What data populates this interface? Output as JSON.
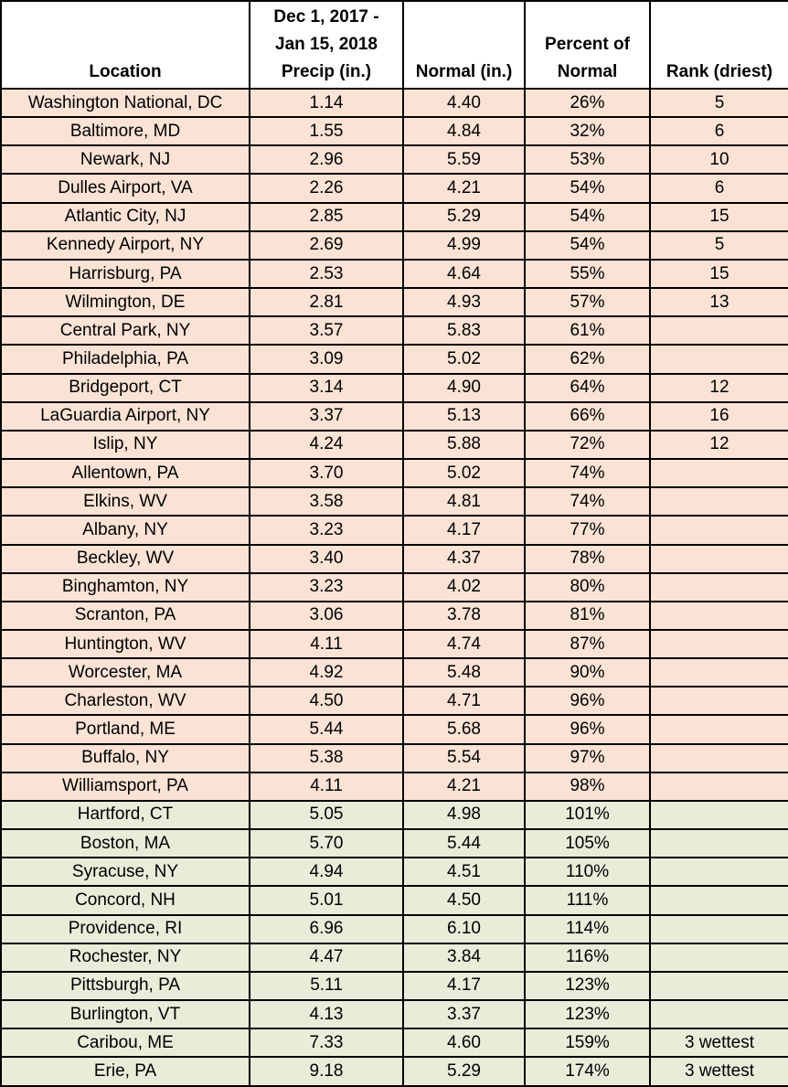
{
  "colors": {
    "below_normal_row_bg": "#fae3d4",
    "above_normal_row_bg": "#e8edda",
    "border": "#000000",
    "text": "#000000",
    "header_bg": "#ffffff"
  },
  "table": {
    "columns": [
      {
        "key": "location",
        "label_lines": [
          "Location"
        ]
      },
      {
        "key": "precip",
        "label_lines": [
          "Dec 1, 2017 -",
          "Jan 15, 2018",
          "Precip (in.)"
        ]
      },
      {
        "key": "normal",
        "label_lines": [
          "Normal (in.)"
        ]
      },
      {
        "key": "percent",
        "label_lines": [
          "Percent of",
          "Normal"
        ]
      },
      {
        "key": "rank",
        "label_lines": [
          "Rank (driest)"
        ]
      }
    ],
    "rows": [
      {
        "location": "Washington National, DC",
        "precip": "1.14",
        "normal": "4.40",
        "percent": "26%",
        "rank": "5",
        "status": "below"
      },
      {
        "location": "Baltimore, MD",
        "precip": "1.55",
        "normal": "4.84",
        "percent": "32%",
        "rank": "6",
        "status": "below"
      },
      {
        "location": "Newark, NJ",
        "precip": "2.96",
        "normal": "5.59",
        "percent": "53%",
        "rank": "10",
        "status": "below"
      },
      {
        "location": "Dulles Airport, VA",
        "precip": "2.26",
        "normal": "4.21",
        "percent": "54%",
        "rank": "6",
        "status": "below"
      },
      {
        "location": "Atlantic City, NJ",
        "precip": "2.85",
        "normal": "5.29",
        "percent": "54%",
        "rank": "15",
        "status": "below"
      },
      {
        "location": "Kennedy Airport, NY",
        "precip": "2.69",
        "normal": "4.99",
        "percent": "54%",
        "rank": "5",
        "status": "below"
      },
      {
        "location": "Harrisburg, PA",
        "precip": "2.53",
        "normal": "4.64",
        "percent": "55%",
        "rank": "15",
        "status": "below"
      },
      {
        "location": "Wilmington, DE",
        "precip": "2.81",
        "normal": "4.93",
        "percent": "57%",
        "rank": "13",
        "status": "below"
      },
      {
        "location": "Central Park, NY",
        "precip": "3.57",
        "normal": "5.83",
        "percent": "61%",
        "rank": "",
        "status": "below"
      },
      {
        "location": "Philadelphia, PA",
        "precip": "3.09",
        "normal": "5.02",
        "percent": "62%",
        "rank": "",
        "status": "below"
      },
      {
        "location": "Bridgeport, CT",
        "precip": "3.14",
        "normal": "4.90",
        "percent": "64%",
        "rank": "12",
        "status": "below"
      },
      {
        "location": "LaGuardia Airport, NY",
        "precip": "3.37",
        "normal": "5.13",
        "percent": "66%",
        "rank": "16",
        "status": "below"
      },
      {
        "location": "Islip, NY",
        "precip": "4.24",
        "normal": "5.88",
        "percent": "72%",
        "rank": "12",
        "status": "below"
      },
      {
        "location": "Allentown, PA",
        "precip": "3.70",
        "normal": "5.02",
        "percent": "74%",
        "rank": "",
        "status": "below"
      },
      {
        "location": "Elkins, WV",
        "precip": "3.58",
        "normal": "4.81",
        "percent": "74%",
        "rank": "",
        "status": "below"
      },
      {
        "location": "Albany, NY",
        "precip": "3.23",
        "normal": "4.17",
        "percent": "77%",
        "rank": "",
        "status": "below"
      },
      {
        "location": "Beckley, WV",
        "precip": "3.40",
        "normal": "4.37",
        "percent": "78%",
        "rank": "",
        "status": "below"
      },
      {
        "location": "Binghamton, NY",
        "precip": "3.23",
        "normal": "4.02",
        "percent": "80%",
        "rank": "",
        "status": "below"
      },
      {
        "location": "Scranton, PA",
        "precip": "3.06",
        "normal": "3.78",
        "percent": "81%",
        "rank": "",
        "status": "below"
      },
      {
        "location": "Huntington, WV",
        "precip": "4.11",
        "normal": "4.74",
        "percent": "87%",
        "rank": "",
        "status": "below"
      },
      {
        "location": "Worcester, MA",
        "precip": "4.92",
        "normal": "5.48",
        "percent": "90%",
        "rank": "",
        "status": "below"
      },
      {
        "location": "Charleston, WV",
        "precip": "4.50",
        "normal": "4.71",
        "percent": "96%",
        "rank": "",
        "status": "below"
      },
      {
        "location": "Portland, ME",
        "precip": "5.44",
        "normal": "5.68",
        "percent": "96%",
        "rank": "",
        "status": "below"
      },
      {
        "location": "Buffalo, NY",
        "precip": "5.38",
        "normal": "5.54",
        "percent": "97%",
        "rank": "",
        "status": "below"
      },
      {
        "location": "Williamsport, PA",
        "precip": "4.11",
        "normal": "4.21",
        "percent": "98%",
        "rank": "",
        "status": "below"
      },
      {
        "location": "Hartford, CT",
        "precip": "5.05",
        "normal": "4.98",
        "percent": "101%",
        "rank": "",
        "status": "above"
      },
      {
        "location": "Boston, MA",
        "precip": "5.70",
        "normal": "5.44",
        "percent": "105%",
        "rank": "",
        "status": "above"
      },
      {
        "location": "Syracuse, NY",
        "precip": "4.94",
        "normal": "4.51",
        "percent": "110%",
        "rank": "",
        "status": "above"
      },
      {
        "location": "Concord, NH",
        "precip": "5.01",
        "normal": "4.50",
        "percent": "111%",
        "rank": "",
        "status": "above"
      },
      {
        "location": "Providence, RI",
        "precip": "6.96",
        "normal": "6.10",
        "percent": "114%",
        "rank": "",
        "status": "above"
      },
      {
        "location": "Rochester, NY",
        "precip": "4.47",
        "normal": "3.84",
        "percent": "116%",
        "rank": "",
        "status": "above"
      },
      {
        "location": "Pittsburgh, PA",
        "precip": "5.11",
        "normal": "4.17",
        "percent": "123%",
        "rank": "",
        "status": "above"
      },
      {
        "location": "Burlington, VT",
        "precip": "4.13",
        "normal": "3.37",
        "percent": "123%",
        "rank": "",
        "status": "above"
      },
      {
        "location": "Caribou, ME",
        "precip": "7.33",
        "normal": "4.60",
        "percent": "159%",
        "rank": "3 wettest",
        "status": "above"
      },
      {
        "location": "Erie, PA",
        "precip": "9.18",
        "normal": "5.29",
        "percent": "174%",
        "rank": "3 wettest",
        "status": "above"
      }
    ]
  },
  "chart_data": {
    "type": "table",
    "title": "Dec 1, 2017 - Jan 15, 2018 Precipitation vs Normal by Location",
    "columns": [
      "Location",
      "Dec 1, 2017 - Jan 15, 2018 Precip (in.)",
      "Normal (in.)",
      "Percent of Normal",
      "Rank (driest)"
    ],
    "rows": [
      [
        "Washington National, DC",
        1.14,
        4.4,
        "26%",
        "5"
      ],
      [
        "Baltimore, MD",
        1.55,
        4.84,
        "32%",
        "6"
      ],
      [
        "Newark, NJ",
        2.96,
        5.59,
        "53%",
        "10"
      ],
      [
        "Dulles Airport, VA",
        2.26,
        4.21,
        "54%",
        "6"
      ],
      [
        "Atlantic City, NJ",
        2.85,
        5.29,
        "54%",
        "15"
      ],
      [
        "Kennedy Airport, NY",
        2.69,
        4.99,
        "54%",
        "5"
      ],
      [
        "Harrisburg, PA",
        2.53,
        4.64,
        "55%",
        "15"
      ],
      [
        "Wilmington, DE",
        2.81,
        4.93,
        "57%",
        "13"
      ],
      [
        "Central Park, NY",
        3.57,
        5.83,
        "61%",
        ""
      ],
      [
        "Philadelphia, PA",
        3.09,
        5.02,
        "62%",
        ""
      ],
      [
        "Bridgeport, CT",
        3.14,
        4.9,
        "64%",
        "12"
      ],
      [
        "LaGuardia Airport, NY",
        3.37,
        5.13,
        "66%",
        "16"
      ],
      [
        "Islip, NY",
        4.24,
        5.88,
        "72%",
        "12"
      ],
      [
        "Allentown, PA",
        3.7,
        5.02,
        "74%",
        ""
      ],
      [
        "Elkins, WV",
        3.58,
        4.81,
        "74%",
        ""
      ],
      [
        "Albany, NY",
        3.23,
        4.17,
        "77%",
        ""
      ],
      [
        "Beckley, WV",
        3.4,
        4.37,
        "78%",
        ""
      ],
      [
        "Binghamton, NY",
        3.23,
        4.02,
        "80%",
        ""
      ],
      [
        "Scranton, PA",
        3.06,
        3.78,
        "81%",
        ""
      ],
      [
        "Huntington, WV",
        4.11,
        4.74,
        "87%",
        ""
      ],
      [
        "Worcester, MA",
        4.92,
        5.48,
        "90%",
        ""
      ],
      [
        "Charleston, WV",
        4.5,
        4.71,
        "96%",
        ""
      ],
      [
        "Portland, ME",
        5.44,
        5.68,
        "96%",
        ""
      ],
      [
        "Buffalo, NY",
        5.38,
        5.54,
        "97%",
        ""
      ],
      [
        "Williamsport, PA",
        4.11,
        4.21,
        "98%",
        ""
      ],
      [
        "Hartford, CT",
        5.05,
        4.98,
        "101%",
        ""
      ],
      [
        "Boston, MA",
        5.7,
        5.44,
        "105%",
        ""
      ],
      [
        "Syracuse, NY",
        4.94,
        4.51,
        "110%",
        ""
      ],
      [
        "Concord, NH",
        5.01,
        4.5,
        "111%",
        ""
      ],
      [
        "Providence, RI",
        6.96,
        6.1,
        "114%",
        ""
      ],
      [
        "Rochester, NY",
        4.47,
        3.84,
        "116%",
        ""
      ],
      [
        "Pittsburgh, PA",
        5.11,
        4.17,
        "123%",
        ""
      ],
      [
        "Burlington, VT",
        4.13,
        3.37,
        "123%",
        ""
      ],
      [
        "Caribou, ME",
        7.33,
        4.6,
        "159%",
        "3 wettest"
      ],
      [
        "Erie, PA",
        9.18,
        5.29,
        "174%",
        "3 wettest"
      ]
    ],
    "row_color_rule": "rows with Percent of Normal < 100% shaded #fae3d4 (drier than normal); rows >= 100% shaded #e8edda (wetter than normal)",
    "legend_position": "none",
    "grid": true
  }
}
